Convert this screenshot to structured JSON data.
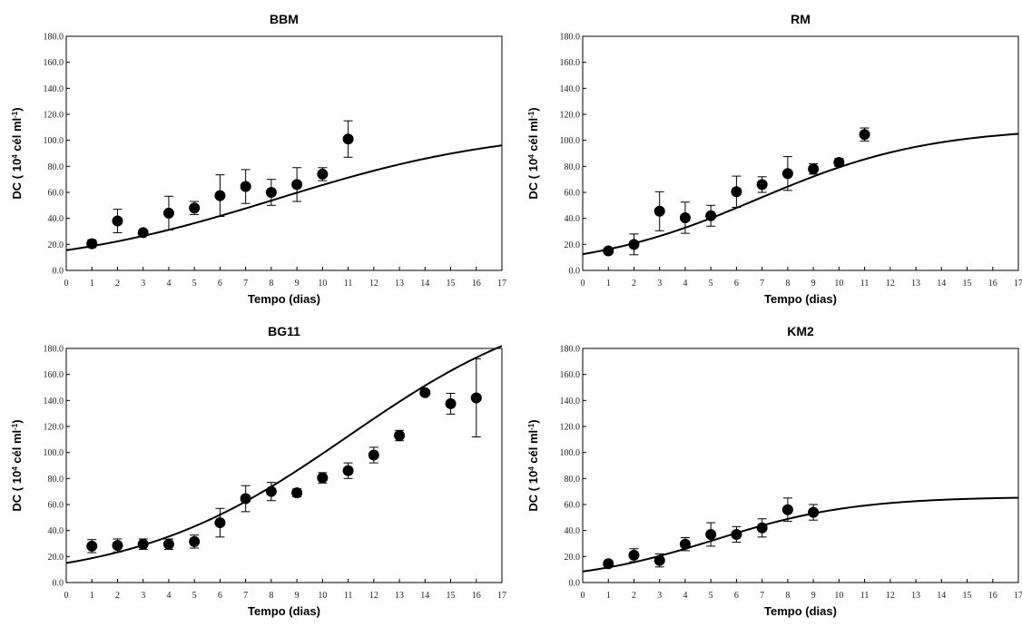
{
  "chart_data": [
    {
      "type": "scatter",
      "title": "BBM",
      "xlabel": "Tempo (dias)",
      "ylabel_parts": [
        "DC ( 10",
        "4",
        " cél ml",
        "-1",
        ")"
      ],
      "xlim": [
        0,
        17
      ],
      "ylim": [
        0,
        180
      ],
      "xticks": [
        "0",
        "1",
        "2",
        "3",
        "4",
        "5",
        "6",
        "7",
        "8",
        "9",
        "10",
        "11",
        "12",
        "13",
        "14",
        "15",
        "16",
        "17"
      ],
      "yticks": [
        "0.0",
        "20.0",
        "40.0",
        "60.0",
        "80.0",
        "100.0",
        "120.0",
        "140.0",
        "160.0",
        "180.0"
      ],
      "points": [
        {
          "x": 1,
          "y": 20.5,
          "err": 3
        },
        {
          "x": 2,
          "y": 38,
          "err": 9
        },
        {
          "x": 3,
          "y": 29,
          "err": 2
        },
        {
          "x": 4,
          "y": 44,
          "err": 13
        },
        {
          "x": 5,
          "y": 48,
          "err": 5
        },
        {
          "x": 6,
          "y": 57.5,
          "err": 16
        },
        {
          "x": 7,
          "y": 64.5,
          "err": 13
        },
        {
          "x": 8,
          "y": 60,
          "err": 10
        },
        {
          "x": 9,
          "y": 66,
          "err": 13
        },
        {
          "x": 10,
          "y": 74,
          "err": 5
        },
        {
          "x": 11,
          "y": 101,
          "err": 14
        }
      ],
      "fit": {
        "K": 110,
        "N0": 15.5,
        "r": 0.22
      }
    },
    {
      "type": "scatter",
      "title": "RM",
      "xlabel": "Tempo (dias)",
      "ylabel_parts": [
        "DC ( 10",
        "4",
        " cél ml",
        "-1",
        ")"
      ],
      "xlim": [
        0,
        17
      ],
      "ylim": [
        0,
        180
      ],
      "xticks": [
        "0",
        "1",
        "2",
        "3",
        "4",
        "5",
        "6",
        "7",
        "8",
        "9",
        "10",
        "11",
        "12",
        "13",
        "14",
        "15",
        "16",
        "17"
      ],
      "yticks": [
        "0.0",
        "20.0",
        "40.0",
        "60.0",
        "80.0",
        "100.0",
        "120.0",
        "140.0",
        "160.0",
        "180.0"
      ],
      "points": [
        {
          "x": 1,
          "y": 15,
          "err": 2
        },
        {
          "x": 2,
          "y": 20,
          "err": 8
        },
        {
          "x": 3,
          "y": 45.5,
          "err": 15
        },
        {
          "x": 4,
          "y": 40.5,
          "err": 12
        },
        {
          "x": 5,
          "y": 42,
          "err": 8
        },
        {
          "x": 6,
          "y": 60.5,
          "err": 12
        },
        {
          "x": 7,
          "y": 66,
          "err": 6
        },
        {
          "x": 8,
          "y": 74.5,
          "err": 13
        },
        {
          "x": 9,
          "y": 78,
          "err": 4
        },
        {
          "x": 10,
          "y": 83,
          "err": 3
        },
        {
          "x": 11,
          "y": 104.5,
          "err": 5
        }
      ],
      "fit": {
        "K": 110,
        "N0": 12.5,
        "r": 0.3
      }
    },
    {
      "type": "scatter",
      "title": "BG11",
      "xlabel": "Tempo (dias)",
      "ylabel_parts": [
        "DC ( 10",
        "4",
        " cél  ml",
        "-1",
        ")"
      ],
      "xlim": [
        0,
        17
      ],
      "ylim": [
        0,
        180
      ],
      "xticks": [
        "0",
        "1",
        "2",
        "3",
        "4",
        "5",
        "6",
        "7",
        "8",
        "9",
        "10",
        "11",
        "12",
        "13",
        "14",
        "15",
        "16",
        "17"
      ],
      "yticks": [
        "0.0",
        "20.0",
        "40.0",
        "60.0",
        "80.0",
        "100.0",
        "120.0",
        "140.0",
        "160.0",
        "180.0"
      ],
      "points": [
        {
          "x": 1,
          "y": 28,
          "err": 5
        },
        {
          "x": 2,
          "y": 28.5,
          "err": 5
        },
        {
          "x": 3,
          "y": 29.5,
          "err": 4
        },
        {
          "x": 4,
          "y": 29.5,
          "err": 4
        },
        {
          "x": 5,
          "y": 31.5,
          "err": 5
        },
        {
          "x": 6,
          "y": 46,
          "err": 11
        },
        {
          "x": 7,
          "y": 64.5,
          "err": 10
        },
        {
          "x": 8,
          "y": 70,
          "err": 7
        },
        {
          "x": 9,
          "y": 69,
          "err": 3
        },
        {
          "x": 10,
          "y": 80.5,
          "err": 4
        },
        {
          "x": 11,
          "y": 86,
          "err": 6
        },
        {
          "x": 12,
          "y": 98,
          "err": 6
        },
        {
          "x": 13,
          "y": 113,
          "err": 4
        },
        {
          "x": 14,
          "y": 146,
          "err": 2
        },
        {
          "x": 15,
          "y": 137.5,
          "err": 8
        },
        {
          "x": 16,
          "y": 142,
          "err": 30
        }
      ],
      "fit": {
        "K": 225,
        "N0": 15,
        "r": 0.24
      }
    },
    {
      "type": "scatter",
      "title": "KM2",
      "xlabel": "Tempo (dias)",
      "ylabel_parts": [
        "DC ( 10",
        "4",
        " cél ml",
        "-1",
        ")"
      ],
      "xlim": [
        0,
        17
      ],
      "ylim": [
        0,
        180
      ],
      "xticks": [
        "0",
        "1",
        "2",
        "3",
        "4",
        "5",
        "6",
        "7",
        "8",
        "9",
        "10",
        "11",
        "12",
        "13",
        "14",
        "15",
        "16",
        "17"
      ],
      "yticks": [
        "0.0",
        "20.0",
        "40.0",
        "60.0",
        "80.0",
        "100.0",
        "120.0",
        "140.0",
        "160.0",
        "180.0"
      ],
      "points": [
        {
          "x": 1,
          "y": 14.5,
          "err": 2
        },
        {
          "x": 2,
          "y": 21,
          "err": 5
        },
        {
          "x": 3,
          "y": 17,
          "err": 5
        },
        {
          "x": 4,
          "y": 29.5,
          "err": 5
        },
        {
          "x": 5,
          "y": 37,
          "err": 9
        },
        {
          "x": 6,
          "y": 37,
          "err": 6
        },
        {
          "x": 7,
          "y": 42,
          "err": 7
        },
        {
          "x": 8,
          "y": 56,
          "err": 9
        },
        {
          "x": 9,
          "y": 54,
          "err": 6
        }
      ],
      "fit": {
        "K": 66,
        "N0": 8.5,
        "r": 0.37
      }
    }
  ]
}
